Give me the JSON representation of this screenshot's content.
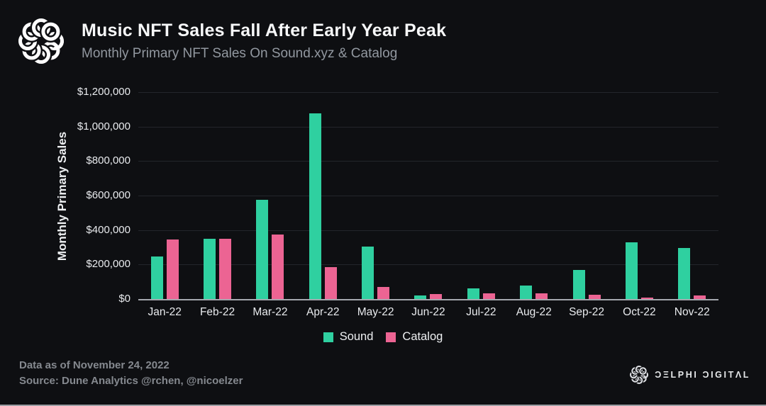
{
  "header": {
    "title": "Music NFT Sales Fall After Early Year Peak",
    "subtitle": "Monthly Primary NFT Sales On Sound.xyz & Catalog"
  },
  "chart_data": {
    "type": "bar",
    "title": "Music NFT Sales Fall After Early Year Peak",
    "subtitle": "Monthly Primary NFT Sales On Sound.xyz & Catalog",
    "categories": [
      "Jan-22",
      "Feb-22",
      "Mar-22",
      "Apr-22",
      "May-22",
      "Jun-22",
      "Jul-22",
      "Aug-22",
      "Sep-22",
      "Oct-22",
      "Nov-22"
    ],
    "series": [
      {
        "name": "Sound",
        "color": "#2fd0a0",
        "values": [
          245000,
          350000,
          575000,
          1075000,
          305000,
          20000,
          60000,
          80000,
          170000,
          330000,
          295000
        ]
      },
      {
        "name": "Catalog",
        "color": "#ec6493",
        "values": [
          345000,
          350000,
          375000,
          185000,
          70000,
          30000,
          32000,
          32000,
          25000,
          10000,
          20000
        ]
      }
    ],
    "xlabel": "",
    "ylabel": "Monthly Primary Sales",
    "ylim": [
      0,
      1200000
    ],
    "yticks": [
      {
        "label": "$1,200,000",
        "value": 1200000
      },
      {
        "label": "$1,000,000",
        "value": 1000000
      },
      {
        "label": "$800,000",
        "value": 800000
      },
      {
        "label": "$600,000",
        "value": 600000
      },
      {
        "label": "$400,000",
        "value": 400000
      },
      {
        "label": "$200,000",
        "value": 200000
      },
      {
        "label": "$0",
        "value": 0
      }
    ],
    "grid": true,
    "legend_position": "bottom-center"
  },
  "footer": {
    "data_as_of": "Data as of November 24, 2022",
    "source": "Source: Dune Analytics @rchen, @nicoelzer"
  },
  "branding": {
    "name": "Delphi Digital",
    "wordmark": "ƆΞLPHI ƆIGITΛL"
  },
  "colors": {
    "background": "#0e0f12",
    "title_text": "#f7f8f9",
    "subtitle_text": "#9298a0",
    "tick_text": "#e9ebee",
    "gridline": "#23252b",
    "axis_line": "#a4a7ae",
    "footer_text": "#85898f",
    "sound": "#2fd0a0",
    "catalog": "#ec6493"
  }
}
